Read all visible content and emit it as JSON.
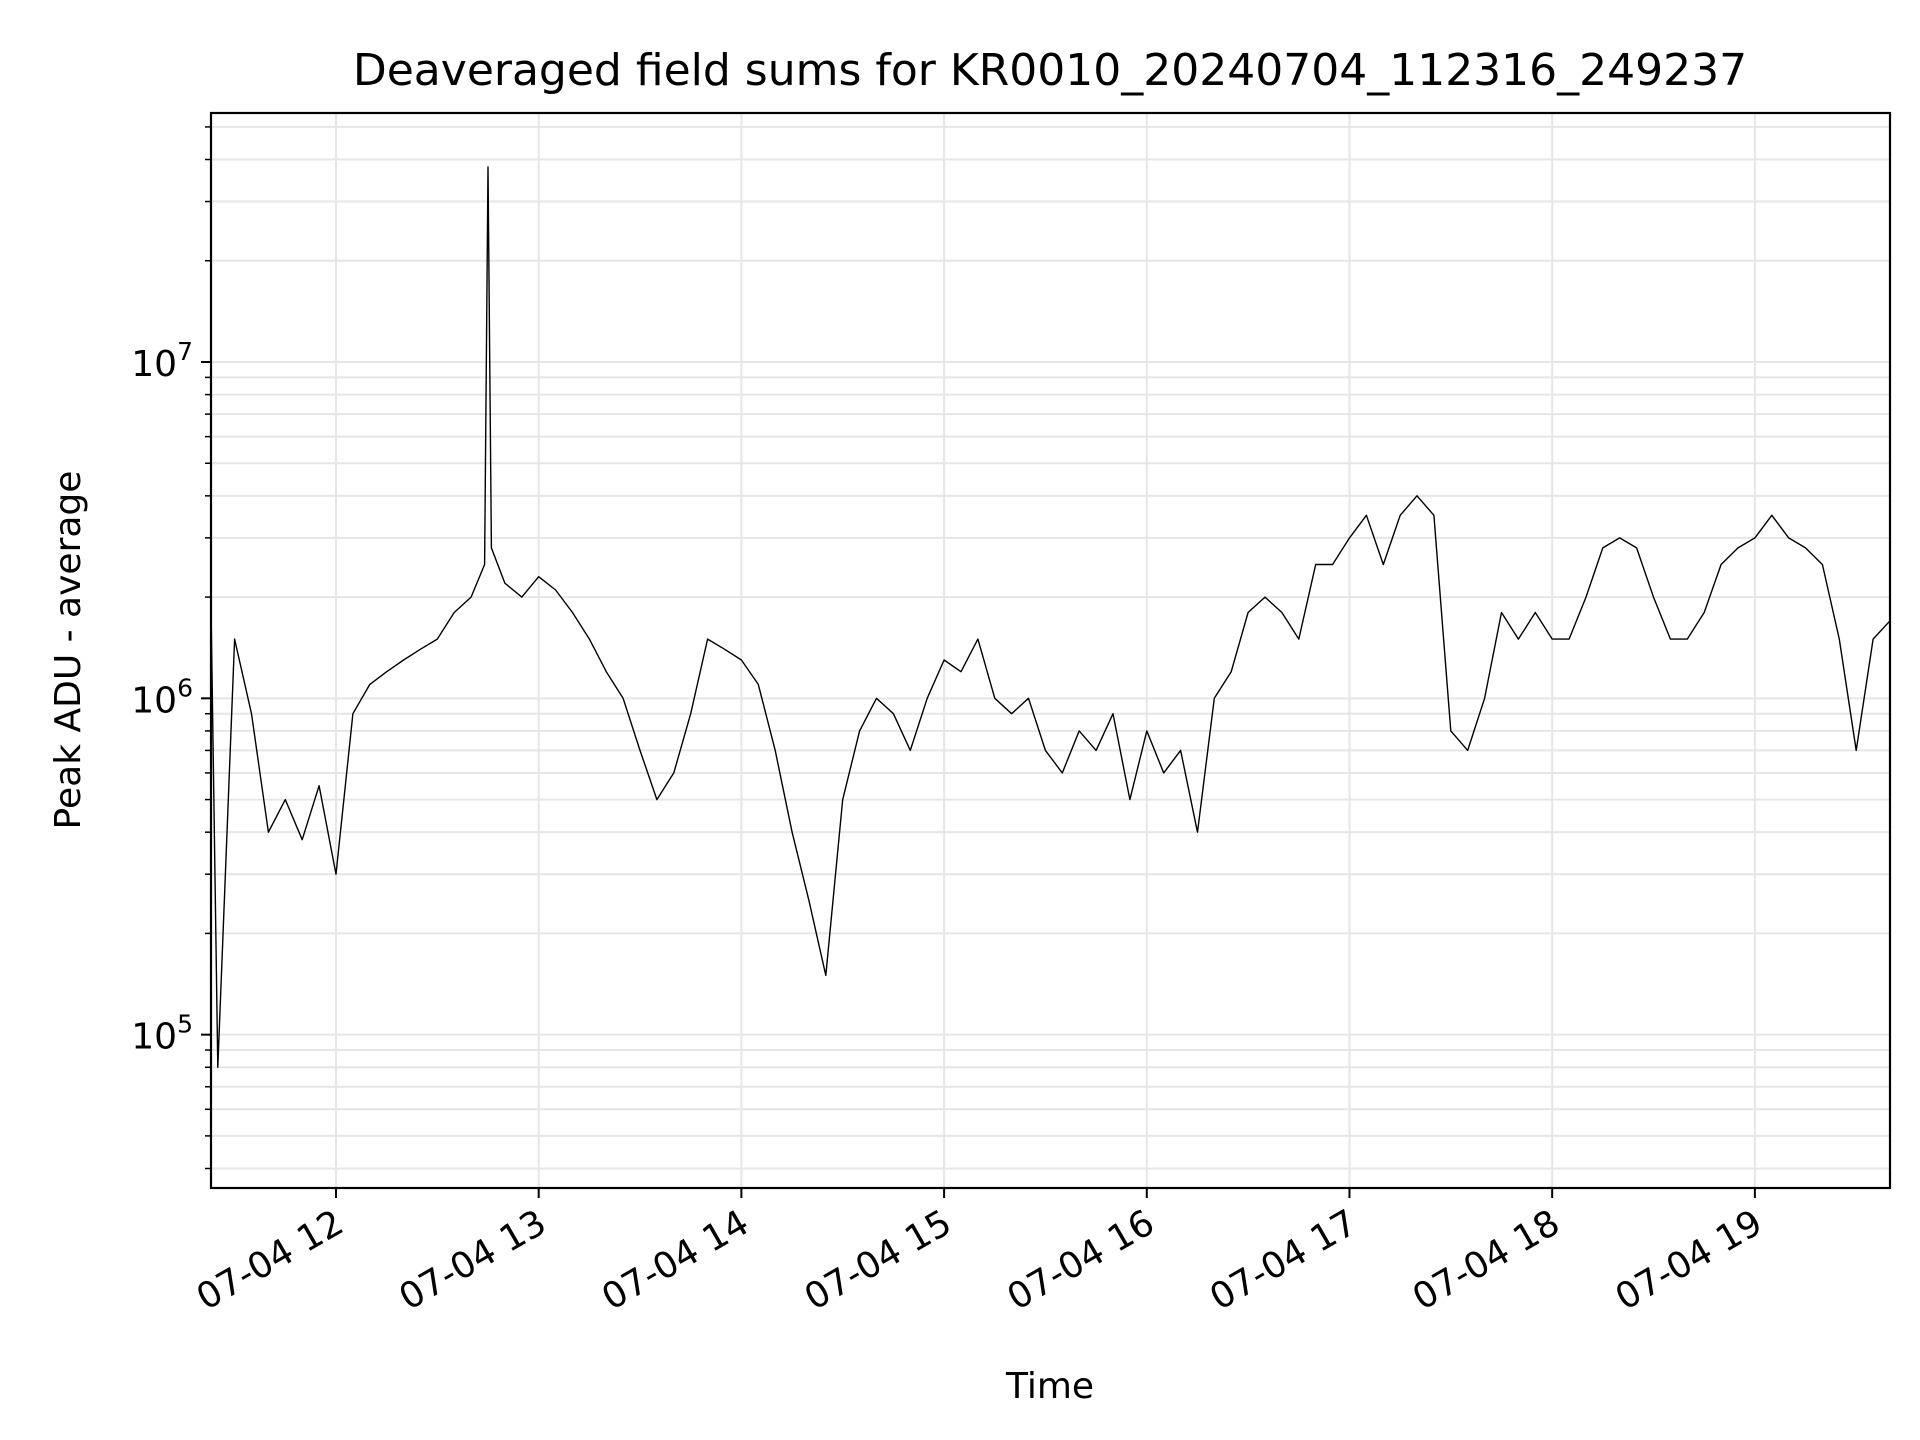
{
  "chart_data": {
    "type": "line",
    "title": "Deaveraged field sums for KR0010_20240704_112316_249237",
    "xlabel": "Time",
    "ylabel": "Peak ADU - average",
    "x_type": "datetime",
    "xlim": [
      "2024-07-04 11:23",
      "2024-07-04 19:40"
    ],
    "ylim": [
      35000,
      55000000
    ],
    "y_scale": "log",
    "grid": true,
    "legend": "none",
    "line_color": "#000000",
    "x_tick_labels": [
      "07-04 12",
      "07-04 13",
      "07-04 14",
      "07-04 15",
      "07-04 16",
      "07-04 17",
      "07-04 18",
      "07-04 19"
    ],
    "x_ticks": [
      "2024-07-04 12:00",
      "2024-07-04 13:00",
      "2024-07-04 14:00",
      "2024-07-04 15:00",
      "2024-07-04 16:00",
      "2024-07-04 17:00",
      "2024-07-04 18:00",
      "2024-07-04 19:00"
    ],
    "y_tick_labels": [
      {
        "base": "10",
        "exp": "5",
        "value": 100000
      },
      {
        "base": "10",
        "exp": "6",
        "value": 1000000
      },
      {
        "base": "10",
        "exp": "7",
        "value": 10000000
      }
    ],
    "series": [
      {
        "x": [
          "2024-07-04 11:23",
          "2024-07-04 11:25",
          "2024-07-04 11:30",
          "2024-07-04 11:35",
          "2024-07-04 11:40",
          "2024-07-04 11:45",
          "2024-07-04 11:50",
          "2024-07-04 11:55",
          "2024-07-04 12:00",
          "2024-07-04 12:05",
          "2024-07-04 12:10",
          "2024-07-04 12:15",
          "2024-07-04 12:20",
          "2024-07-04 12:25",
          "2024-07-04 12:30",
          "2024-07-04 12:35",
          "2024-07-04 12:40",
          "2024-07-04 12:44",
          "2024-07-04 12:45",
          "2024-07-04 12:46",
          "2024-07-04 12:50",
          "2024-07-04 12:55",
          "2024-07-04 13:00",
          "2024-07-04 13:05",
          "2024-07-04 13:10",
          "2024-07-04 13:15",
          "2024-07-04 13:20",
          "2024-07-04 13:25",
          "2024-07-04 13:30",
          "2024-07-04 13:35",
          "2024-07-04 13:40",
          "2024-07-04 13:45",
          "2024-07-04 13:50",
          "2024-07-04 13:55",
          "2024-07-04 14:00",
          "2024-07-04 14:05",
          "2024-07-04 14:10",
          "2024-07-04 14:15",
          "2024-07-04 14:20",
          "2024-07-04 14:25",
          "2024-07-04 14:30",
          "2024-07-04 14:35",
          "2024-07-04 14:40",
          "2024-07-04 14:45",
          "2024-07-04 14:50",
          "2024-07-04 14:55",
          "2024-07-04 15:00",
          "2024-07-04 15:05",
          "2024-07-04 15:10",
          "2024-07-04 15:15",
          "2024-07-04 15:20",
          "2024-07-04 15:25",
          "2024-07-04 15:30",
          "2024-07-04 15:35",
          "2024-07-04 15:40",
          "2024-07-04 15:45",
          "2024-07-04 15:50",
          "2024-07-04 15:55",
          "2024-07-04 16:00",
          "2024-07-04 16:05",
          "2024-07-04 16:10",
          "2024-07-04 16:15",
          "2024-07-04 16:20",
          "2024-07-04 16:25",
          "2024-07-04 16:30",
          "2024-07-04 16:35",
          "2024-07-04 16:40",
          "2024-07-04 16:45",
          "2024-07-04 16:50",
          "2024-07-04 16:55",
          "2024-07-04 17:00",
          "2024-07-04 17:05",
          "2024-07-04 17:10",
          "2024-07-04 17:15",
          "2024-07-04 17:20",
          "2024-07-04 17:25",
          "2024-07-04 17:30",
          "2024-07-04 17:35",
          "2024-07-04 17:40",
          "2024-07-04 17:45",
          "2024-07-04 17:50",
          "2024-07-04 17:55",
          "2024-07-04 18:00",
          "2024-07-04 18:05",
          "2024-07-04 18:10",
          "2024-07-04 18:15",
          "2024-07-04 18:20",
          "2024-07-04 18:25",
          "2024-07-04 18:30",
          "2024-07-04 18:35",
          "2024-07-04 18:40",
          "2024-07-04 18:45",
          "2024-07-04 18:50",
          "2024-07-04 18:55",
          "2024-07-04 19:00",
          "2024-07-04 19:05",
          "2024-07-04 19:10",
          "2024-07-04 19:15",
          "2024-07-04 19:20",
          "2024-07-04 19:25",
          "2024-07-04 19:30",
          "2024-07-04 19:35",
          "2024-07-04 19:40"
        ],
        "y": [
          1900000,
          80000,
          1500000,
          900000,
          400000,
          500000,
          380000,
          550000,
          300000,
          900000,
          1100000,
          1200000,
          1300000,
          1400000,
          1500000,
          1800000,
          2000000,
          2500000,
          38000000,
          2800000,
          2200000,
          2000000,
          2300000,
          2100000,
          1800000,
          1500000,
          1200000,
          1000000,
          700000,
          500000,
          600000,
          900000,
          1500000,
          1400000,
          1300000,
          1100000,
          700000,
          400000,
          250000,
          150000,
          500000,
          800000,
          1000000,
          900000,
          700000,
          1000000,
          1300000,
          1200000,
          1500000,
          1000000,
          900000,
          1000000,
          700000,
          600000,
          800000,
          700000,
          900000,
          500000,
          800000,
          600000,
          700000,
          400000,
          1000000,
          1200000,
          1800000,
          2000000,
          1800000,
          1500000,
          2500000,
          2500000,
          3000000,
          3500000,
          2500000,
          3500000,
          4000000,
          3500000,
          800000,
          700000,
          1000000,
          1800000,
          1500000,
          1800000,
          1500000,
          1500000,
          2000000,
          2800000,
          3000000,
          2800000,
          2000000,
          1500000,
          1500000,
          1800000,
          2500000,
          2800000,
          3000000,
          3500000,
          3000000,
          2800000,
          2500000,
          1500000,
          700000,
          1500000,
          1700000
        ]
      }
    ]
  }
}
